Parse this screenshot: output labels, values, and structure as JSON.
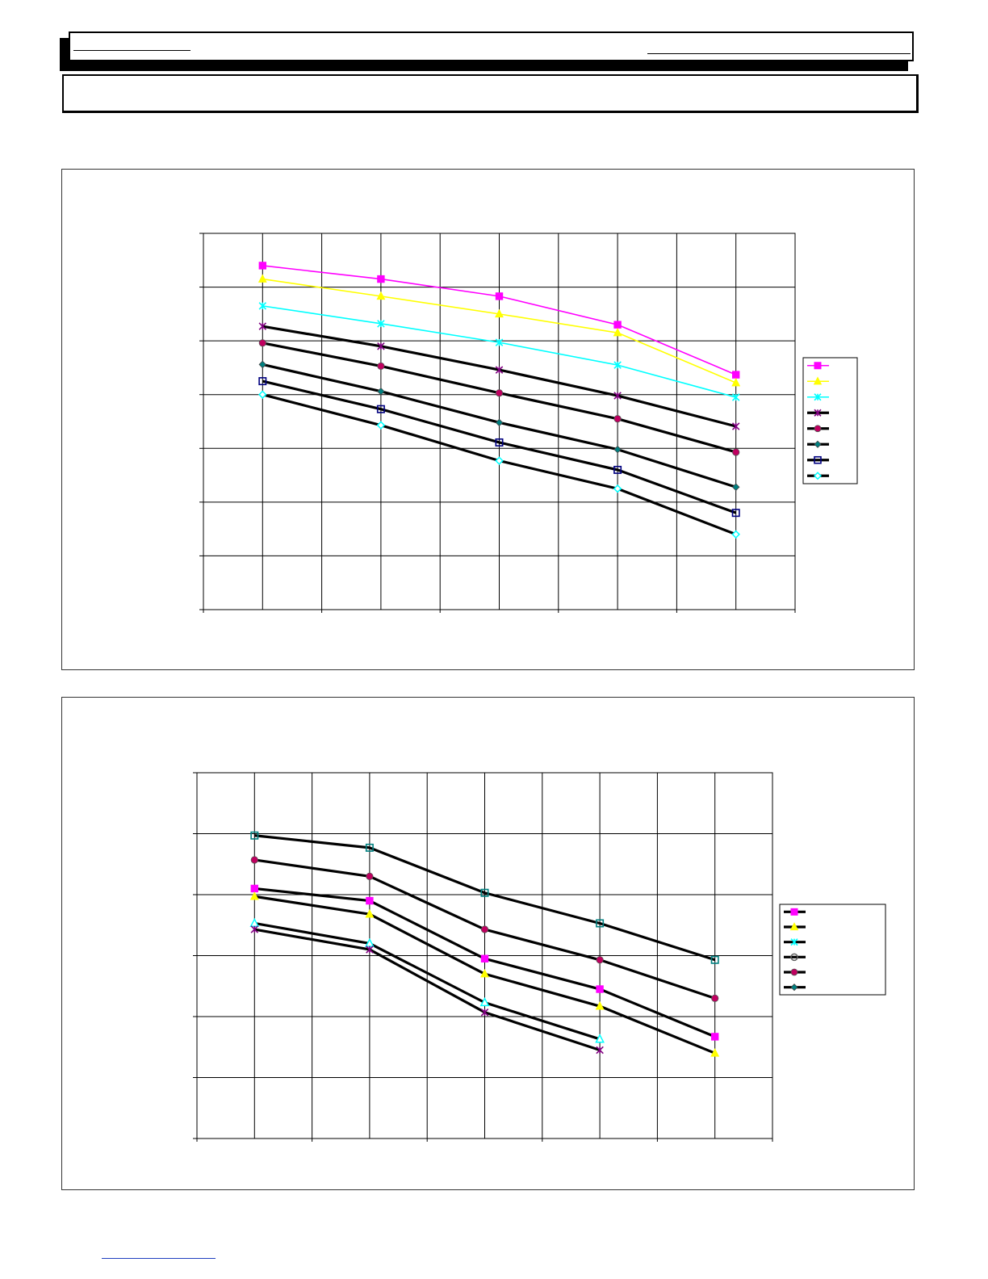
{
  "colors": {
    "magenta": "#ff00ff",
    "yellow": "#ffff00",
    "cyan": "#00ffff",
    "purple": "#800080",
    "crimson": "#c00060",
    "teal": "#008080",
    "navy": "#000080",
    "black": "#000000"
  },
  "chart_data": [
    {
      "type": "line",
      "grid": true,
      "legend_position": "right",
      "xlim": [
        0,
        10
      ],
      "ylim": [
        0,
        7
      ],
      "x": [
        1,
        3,
        5,
        7,
        9
      ],
      "series": [
        {
          "values": [
            6.4,
            6.15,
            5.83,
            5.3,
            4.37
          ],
          "line_color": "#ff00ff",
          "marker": "filled-square",
          "marker_color": "#ff00ff",
          "line_width": 1.6
        },
        {
          "values": [
            6.15,
            5.83,
            5.5,
            5.15,
            4.22
          ],
          "line_color": "#ffff00",
          "marker": "filled-triangle",
          "marker_color": "#ffff00",
          "line_width": 1.6
        },
        {
          "values": [
            5.65,
            5.32,
            4.97,
            4.55,
            3.95
          ],
          "line_color": "#00ffff",
          "marker": "star",
          "marker_color": "#00ffff",
          "line_width": 1.6
        },
        {
          "values": [
            5.27,
            4.9,
            4.46,
            3.98,
            3.41
          ],
          "line_color": "#000000",
          "marker": "star",
          "marker_color": "#800080",
          "line_width": 3.2
        },
        {
          "values": [
            4.96,
            4.53,
            4.03,
            3.55,
            2.93
          ],
          "line_color": "#000000",
          "marker": "filled-circle",
          "marker_color": "#c00060",
          "line_width": 3.2
        },
        {
          "values": [
            4.56,
            4.06,
            3.48,
            2.98,
            2.28
          ],
          "line_color": "#000000",
          "marker": "filled-diamond",
          "marker_color": "#008080",
          "line_width": 3.2
        },
        {
          "values": [
            4.25,
            3.73,
            3.11,
            2.6,
            1.8
          ],
          "line_color": "#000000",
          "marker": "open-square",
          "marker_color": "#000080",
          "line_width": 3.2
        },
        {
          "values": [
            4.0,
            3.43,
            2.77,
            2.25,
            1.4
          ],
          "line_color": "#000000",
          "marker": "open-diamond",
          "marker_color": "#00ffff",
          "line_width": 3.2
        }
      ]
    },
    {
      "type": "line",
      "grid": true,
      "legend_position": "right",
      "xlim": [
        0,
        10
      ],
      "ylim": [
        0,
        6
      ],
      "x": [
        1,
        3,
        5,
        7,
        9
      ],
      "series": [
        {
          "values": [
            4.1,
            3.9,
            2.95,
            2.45,
            1.67
          ],
          "line_color": "#000000",
          "marker": "filled-square",
          "marker_color": "#ff00ff",
          "line_width": 3.2
        },
        {
          "values": [
            3.97,
            3.68,
            2.7,
            2.17,
            1.4
          ],
          "line_color": "#000000",
          "marker": "filled-triangle",
          "marker_color": "#ffff00",
          "line_width": 3.2
        },
        {
          "values": [
            3.53,
            3.2,
            2.23,
            1.63,
            null
          ],
          "line_color": "#000000",
          "marker": "open-triangle",
          "marker_color": "#00ffff",
          "line_width": 3.2
        },
        {
          "values": [
            3.43,
            3.1,
            2.07,
            1.45,
            null
          ],
          "line_color": "#000000",
          "marker": "star",
          "marker_color": "#800080",
          "line_width": 3.2
        },
        {
          "values": [
            4.57,
            4.3,
            3.43,
            2.93,
            2.3
          ],
          "line_color": "#000000",
          "marker": "filled-circle",
          "marker_color": "#c00060",
          "line_width": 3.2
        },
        {
          "values": [
            4.97,
            4.77,
            4.03,
            3.53,
            2.93
          ],
          "line_color": "#000000",
          "marker": "open-square",
          "marker_color": "#008080",
          "line_width": 3.2
        }
      ],
      "legend_markers": [
        "filled-square",
        "filled-triangle",
        "star-cyan",
        "open-circle-gray",
        "filled-circle",
        "filled-diamond-teal"
      ]
    }
  ]
}
